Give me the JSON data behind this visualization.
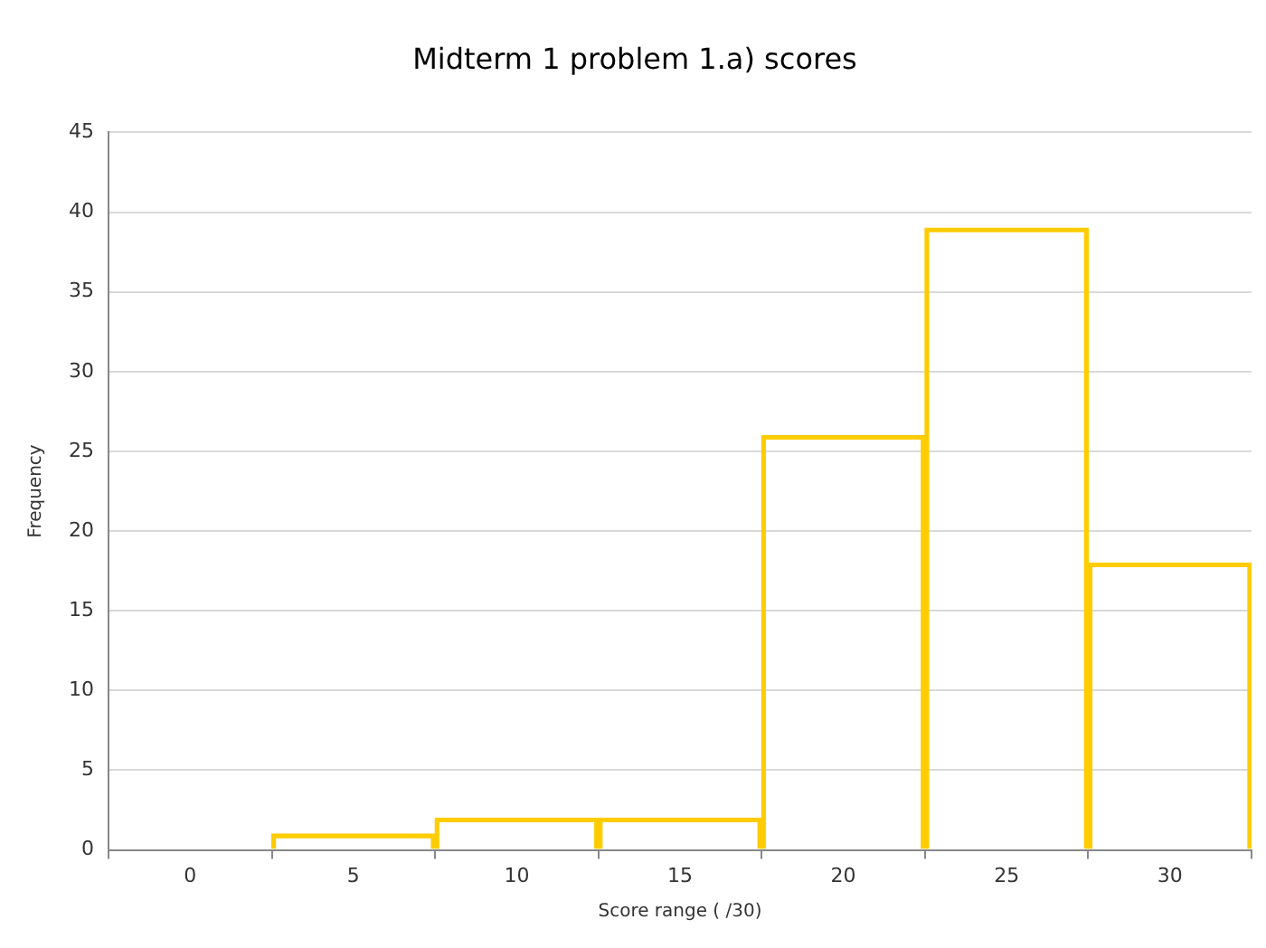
{
  "chart_data": {
    "type": "bar",
    "title": "Midterm 1 problem 1.a) scores",
    "xlabel": "Score range ( /30)",
    "ylabel": "Frequency",
    "categories": [
      "0",
      "5",
      "10",
      "15",
      "20",
      "25",
      "30"
    ],
    "values": [
      0,
      1,
      2,
      2,
      26,
      39,
      18
    ],
    "color": "#ffcc00",
    "ylim": [
      0,
      45
    ],
    "yticks": [
      0,
      5,
      10,
      15,
      20,
      25,
      30,
      35,
      40,
      45
    ],
    "grid": "y",
    "legend": false
  }
}
